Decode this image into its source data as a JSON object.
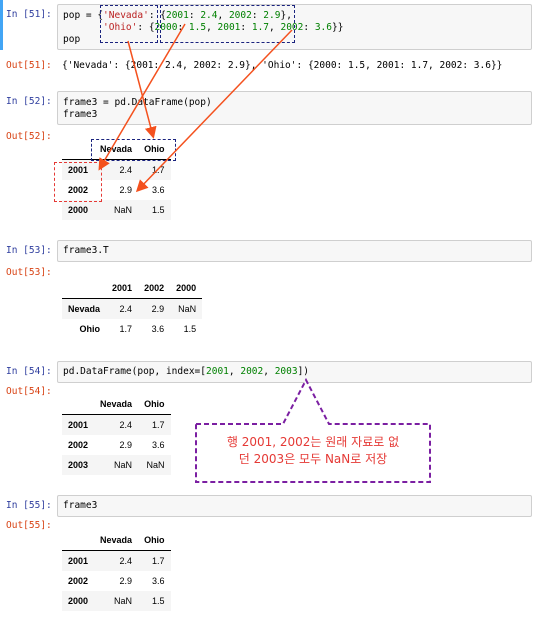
{
  "cells": [
    {
      "in": "In [51]:",
      "out": "Out[51]:",
      "code_line1": [
        "pop = {",
        "'Nevada'",
        ": {",
        "2001",
        ": ",
        "2.4",
        ", ",
        "2002",
        ": ",
        "2.9",
        "},"
      ],
      "code_line2": [
        "       ",
        "'Ohio'",
        ": {",
        "2000",
        ": ",
        "1.5",
        ", ",
        "2001",
        ": ",
        "1.7",
        ", ",
        "2002",
        ": ",
        "3.6",
        "}}"
      ],
      "code_line3": "pop",
      "output": "{'Nevada': {2001: 2.4, 2002: 2.9}, 'Ohio': {2000: 1.5, 2001: 1.7, 2002: 3.6}}"
    },
    {
      "in": "In [52]:",
      "out": "Out[52]:",
      "code_line1": "frame3 = pd.DataFrame(pop)",
      "code_line2": "frame3",
      "table": {
        "columns": [
          "Nevada",
          "Ohio"
        ],
        "rows": [
          {
            "index": "2001",
            "values": [
              "2.4",
              "1.7"
            ]
          },
          {
            "index": "2002",
            "values": [
              "2.9",
              "3.6"
            ]
          },
          {
            "index": "2000",
            "values": [
              "NaN",
              "1.5"
            ]
          }
        ]
      }
    },
    {
      "in": "In [53]:",
      "out": "Out[53]:",
      "code_line1": "frame3.T",
      "table": {
        "columns": [
          "2001",
          "2002",
          "2000"
        ],
        "rows": [
          {
            "index": "Nevada",
            "values": [
              "2.4",
              "2.9",
              "NaN"
            ]
          },
          {
            "index": "Ohio",
            "values": [
              "1.7",
              "3.6",
              "1.5"
            ]
          }
        ]
      }
    },
    {
      "in": "In [54]:",
      "out": "Out[54]:",
      "code_parts": [
        "pd.DataFrame(pop, index=[",
        "2001",
        ", ",
        "2002",
        ", ",
        "2003",
        "])"
      ],
      "table": {
        "columns": [
          "Nevada",
          "Ohio"
        ],
        "rows": [
          {
            "index": "2001",
            "values": [
              "2.4",
              "1.7"
            ]
          },
          {
            "index": "2002",
            "values": [
              "2.9",
              "3.6"
            ]
          },
          {
            "index": "2003",
            "values": [
              "NaN",
              "NaN"
            ]
          }
        ]
      }
    },
    {
      "in": "In [55]:",
      "out": "Out[55]:",
      "code_line1": "frame3",
      "table": {
        "columns": [
          "Nevada",
          "Ohio"
        ],
        "rows": [
          {
            "index": "2001",
            "values": [
              "2.4",
              "1.7"
            ]
          },
          {
            "index": "2002",
            "values": [
              "2.9",
              "3.6"
            ]
          },
          {
            "index": "2000",
            "values": [
              "NaN",
              "1.5"
            ]
          }
        ]
      }
    }
  ],
  "annotation": {
    "line1": "행 2001, 2002는 원래 자료로 없",
    "line2": "던 2003은 모두 NaN로 저장"
  },
  "colors": {
    "prompt_in": "#303f9f",
    "prompt_out": "#d84315",
    "string": "#ba2121",
    "number": "#008000",
    "annotation": "#e53935",
    "box_blue": "#1a237e",
    "box_purple": "#7b1fa2"
  }
}
